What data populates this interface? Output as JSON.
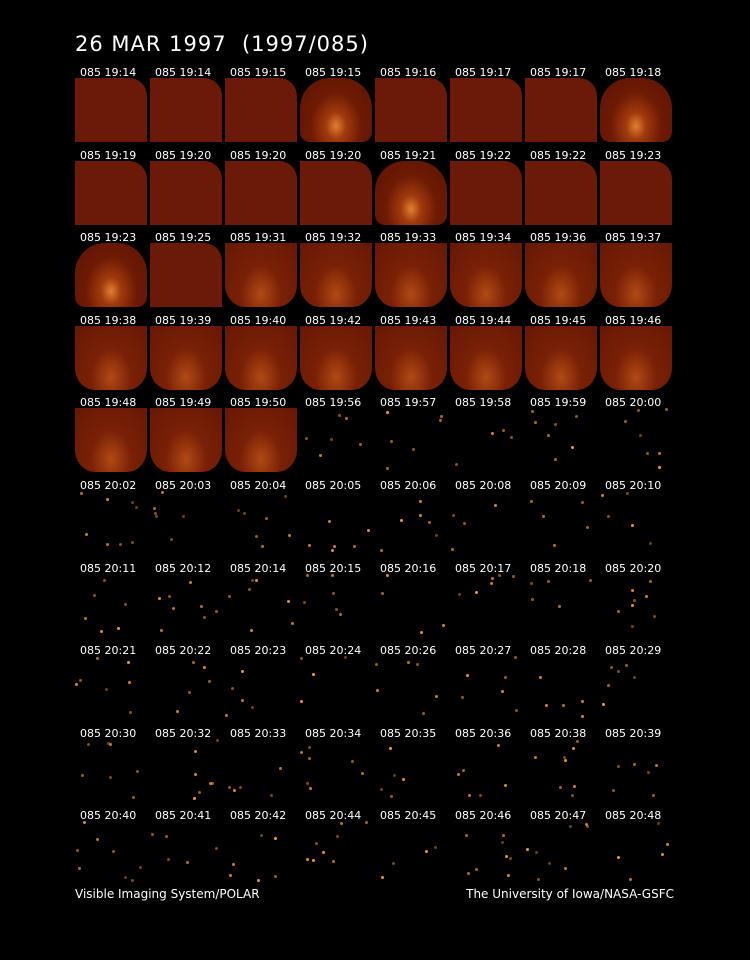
{
  "header": {
    "title": "26 MAR 1997  (1997/085)"
  },
  "rows": [
    [
      "085 19:14",
      "085 19:14",
      "085 19:15",
      "085 19:15",
      "085 19:16",
      "085 19:17",
      "085 19:17",
      "085 19:18"
    ],
    [
      "085 19:19",
      "085 19:20",
      "085 19:20",
      "085 19:20",
      "085 19:21",
      "085 19:22",
      "085 19:22",
      "085 19:23"
    ],
    [
      "085 19:23",
      "085 19:25",
      "085 19:31",
      "085 19:32",
      "085 19:33",
      "085 19:34",
      "085 19:36",
      "085 19:37"
    ],
    [
      "085 19:38",
      "085 19:39",
      "085 19:40",
      "085 19:42",
      "085 19:43",
      "085 19:44",
      "085 19:45",
      "085 19:46"
    ],
    [
      "085 19:48",
      "085 19:49",
      "085 19:50",
      "085 19:56",
      "085 19:57",
      "085 19:58",
      "085 19:59",
      "085 20:00"
    ],
    [
      "085 20:02",
      "085 20:03",
      "085 20:04",
      "085 20:05",
      "085 20:06",
      "085 20:08",
      "085 20:09",
      "085 20:10"
    ],
    [
      "085 20:11",
      "085 20:12",
      "085 20:14",
      "085 20:15",
      "085 20:16",
      "085 20:17",
      "085 20:18",
      "085 20:20"
    ],
    [
      "085 20:21",
      "085 20:22",
      "085 20:23",
      "085 20:24",
      "085 20:26",
      "085 20:27",
      "085 20:28",
      "085 20:29"
    ],
    [
      "085 20:30",
      "085 20:32",
      "085 20:33",
      "085 20:34",
      "085 20:35",
      "085 20:36",
      "085 20:38",
      "085 20:39"
    ],
    [
      "085 20:40",
      "085 20:41",
      "085 20:42",
      "085 20:44",
      "085 20:45",
      "085 20:46",
      "085 20:47",
      "085 20:48"
    ]
  ],
  "footer": {
    "left": "Visible Imaging System/POLAR",
    "right": "The University of Iowa/NASA-GSFC"
  }
}
